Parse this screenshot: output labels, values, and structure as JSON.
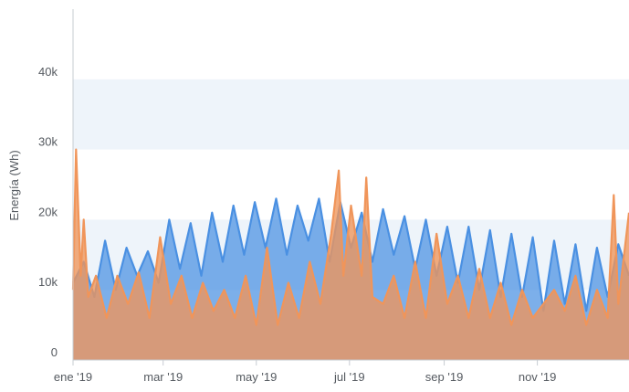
{
  "chart_data": {
    "type": "area",
    "title": "",
    "xlabel": "",
    "ylabel": "Energía (Wh)",
    "x_range": [
      "2019-01-01",
      "2019-12-31"
    ],
    "ylim": [
      0,
      50000
    ],
    "y_ticks": [
      0,
      10000,
      20000,
      30000,
      40000
    ],
    "y_tick_labels": [
      "0",
      "10k",
      "20k",
      "30k",
      "40k"
    ],
    "x_ticks": [
      "2019-01-01",
      "2019-03-01",
      "2019-05-01",
      "2019-07-01",
      "2019-09-01",
      "2019-11-01"
    ],
    "x_tick_labels": [
      "ene '19",
      "mar '19",
      "may '19",
      "jul '19",
      "sep '19",
      "nov '19"
    ],
    "grid": "alternating horizontal bands",
    "legend": "none",
    "colors": {
      "series_1": "#4a90e2",
      "series_2": "#f0955a",
      "band": "#eef4fa",
      "axis": "#c7ccd2"
    },
    "series": [
      {
        "color": "#4a90e2",
        "points": [
          [
            "2019-01-01",
            11000
          ],
          [
            "2019-01-08",
            14000
          ],
          [
            "2019-01-15",
            9000
          ],
          [
            "2019-01-22",
            17000
          ],
          [
            "2019-01-29",
            10000
          ],
          [
            "2019-02-05",
            16000
          ],
          [
            "2019-02-12",
            12000
          ],
          [
            "2019-02-19",
            15500
          ],
          [
            "2019-02-26",
            11000
          ],
          [
            "2019-03-05",
            20000
          ],
          [
            "2019-03-12",
            13000
          ],
          [
            "2019-03-19",
            19500
          ],
          [
            "2019-03-26",
            12000
          ],
          [
            "2019-04-02",
            21000
          ],
          [
            "2019-04-09",
            14000
          ],
          [
            "2019-04-16",
            22000
          ],
          [
            "2019-04-23",
            15000
          ],
          [
            "2019-04-30",
            22500
          ],
          [
            "2019-05-07",
            16000
          ],
          [
            "2019-05-14",
            23000
          ],
          [
            "2019-05-21",
            15000
          ],
          [
            "2019-05-28",
            22000
          ],
          [
            "2019-06-04",
            17000
          ],
          [
            "2019-06-11",
            23000
          ],
          [
            "2019-06-18",
            14000
          ],
          [
            "2019-06-25",
            22500
          ],
          [
            "2019-07-02",
            16000
          ],
          [
            "2019-07-09",
            21000
          ],
          [
            "2019-07-16",
            14000
          ],
          [
            "2019-07-23",
            21500
          ],
          [
            "2019-07-30",
            15000
          ],
          [
            "2019-08-06",
            20500
          ],
          [
            "2019-08-13",
            13000
          ],
          [
            "2019-08-20",
            20000
          ],
          [
            "2019-08-27",
            12000
          ],
          [
            "2019-09-03",
            19000
          ],
          [
            "2019-09-10",
            11000
          ],
          [
            "2019-09-17",
            19000
          ],
          [
            "2019-09-24",
            10000
          ],
          [
            "2019-10-01",
            18500
          ],
          [
            "2019-10-08",
            9000
          ],
          [
            "2019-10-15",
            18000
          ],
          [
            "2019-10-22",
            9000
          ],
          [
            "2019-10-29",
            17500
          ],
          [
            "2019-11-05",
            7000
          ],
          [
            "2019-11-12",
            17000
          ],
          [
            "2019-11-19",
            8000
          ],
          [
            "2019-11-26",
            16500
          ],
          [
            "2019-12-03",
            7000
          ],
          [
            "2019-12-10",
            16000
          ],
          [
            "2019-12-17",
            9000
          ],
          [
            "2019-12-24",
            16500
          ],
          [
            "2019-12-31",
            12000
          ]
        ]
      },
      {
        "color": "#f0955a",
        "points": [
          [
            "2019-01-01",
            10000
          ],
          [
            "2019-01-03",
            30000
          ],
          [
            "2019-01-06",
            12000
          ],
          [
            "2019-01-08",
            20000
          ],
          [
            "2019-01-11",
            9000
          ],
          [
            "2019-01-16",
            12000
          ],
          [
            "2019-01-23",
            6000
          ],
          [
            "2019-01-30",
            12000
          ],
          [
            "2019-02-06",
            8000
          ],
          [
            "2019-02-13",
            12500
          ],
          [
            "2019-02-20",
            6000
          ],
          [
            "2019-02-27",
            17500
          ],
          [
            "2019-03-06",
            8000
          ],
          [
            "2019-03-13",
            12000
          ],
          [
            "2019-03-20",
            6000
          ],
          [
            "2019-03-27",
            11000
          ],
          [
            "2019-04-03",
            7000
          ],
          [
            "2019-04-10",
            10000
          ],
          [
            "2019-04-17",
            6000
          ],
          [
            "2019-04-24",
            12000
          ],
          [
            "2019-05-01",
            5000
          ],
          [
            "2019-05-08",
            16000
          ],
          [
            "2019-05-15",
            5000
          ],
          [
            "2019-05-22",
            11000
          ],
          [
            "2019-05-29",
            6000
          ],
          [
            "2019-06-05",
            14000
          ],
          [
            "2019-06-12",
            8000
          ],
          [
            "2019-06-19",
            18000
          ],
          [
            "2019-06-24",
            27000
          ],
          [
            "2019-06-27",
            12000
          ],
          [
            "2019-07-02",
            22000
          ],
          [
            "2019-07-09",
            12000
          ],
          [
            "2019-07-12",
            26000
          ],
          [
            "2019-07-16",
            9000
          ],
          [
            "2019-07-23",
            8000
          ],
          [
            "2019-07-30",
            12000
          ],
          [
            "2019-08-06",
            6000
          ],
          [
            "2019-08-13",
            14000
          ],
          [
            "2019-08-20",
            6000
          ],
          [
            "2019-08-27",
            18000
          ],
          [
            "2019-09-03",
            8000
          ],
          [
            "2019-09-10",
            12000
          ],
          [
            "2019-09-17",
            6000
          ],
          [
            "2019-09-24",
            13000
          ],
          [
            "2019-10-01",
            6000
          ],
          [
            "2019-10-08",
            11000
          ],
          [
            "2019-10-15",
            5000
          ],
          [
            "2019-10-22",
            10000
          ],
          [
            "2019-10-29",
            6000
          ],
          [
            "2019-11-05",
            8000
          ],
          [
            "2019-11-12",
            10000
          ],
          [
            "2019-11-19",
            7000
          ],
          [
            "2019-11-26",
            12000
          ],
          [
            "2019-12-03",
            5000
          ],
          [
            "2019-12-10",
            10000
          ],
          [
            "2019-12-17",
            6000
          ],
          [
            "2019-12-21",
            23500
          ],
          [
            "2019-12-24",
            8000
          ],
          [
            "2019-12-31",
            21000
          ]
        ]
      }
    ]
  }
}
